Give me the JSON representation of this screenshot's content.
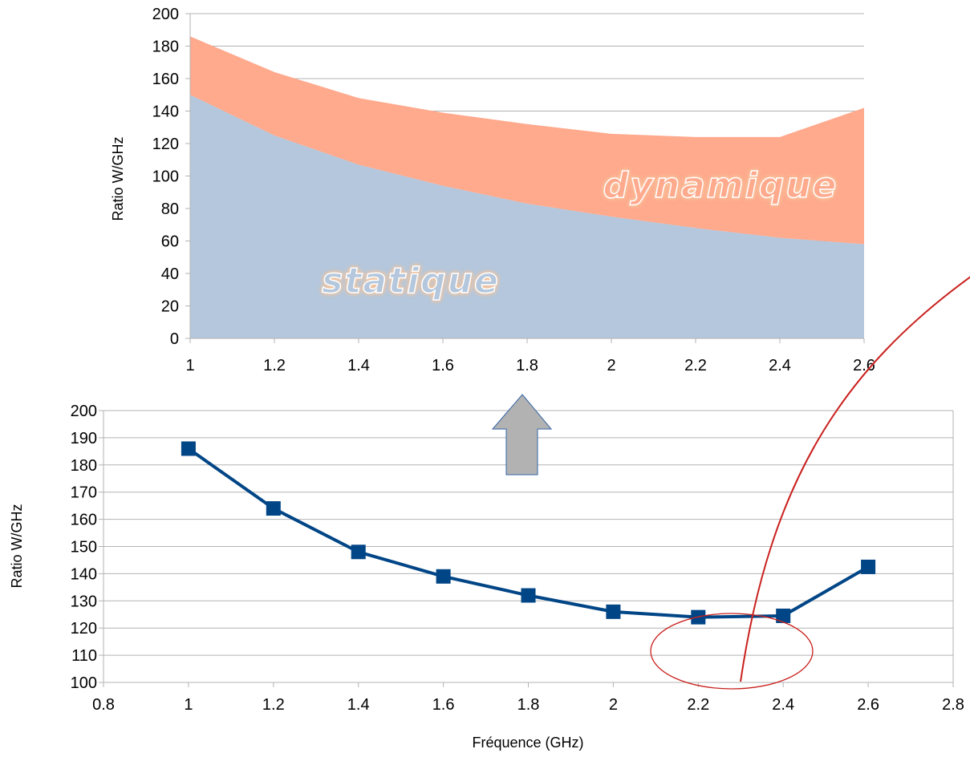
{
  "chart_data": [
    {
      "type": "area",
      "stacked": true,
      "x": [
        1,
        1.2,
        1.4,
        1.6,
        1.8,
        2,
        2.2,
        2.4,
        2.6
      ],
      "series": [
        {
          "name": "statique",
          "values": [
            150,
            125,
            107,
            94,
            83,
            75,
            68,
            62,
            58
          ],
          "color": "#b4c7dc"
        },
        {
          "name": "dynamique",
          "values": [
            36,
            39,
            41,
            45,
            49,
            51,
            56,
            62,
            84
          ],
          "color": "#ffa98d"
        }
      ],
      "ylabel": "Ratio W/GHz",
      "ylim": [
        0,
        200
      ],
      "yticks": [
        0,
        20,
        40,
        60,
        80,
        100,
        120,
        140,
        160,
        180,
        200
      ],
      "xtick_labels": [
        "1",
        "1.2",
        "1.4",
        "1.6",
        "1.8",
        "2",
        "2.2",
        "2.4",
        "2.6"
      ],
      "grid": true,
      "legend": "none"
    },
    {
      "type": "line",
      "x": [
        1,
        1.2,
        1.4,
        1.6,
        1.8,
        2,
        2.2,
        2.4,
        2.6
      ],
      "series": [
        {
          "values": [
            186,
            164,
            148,
            139,
            132,
            126,
            124,
            124.5,
            142.5
          ],
          "color": "#004586",
          "marker": "square"
        }
      ],
      "xlabel": "Fréquence (GHz)",
      "ylabel": "Ratio W/GHz",
      "xlim": [
        0.8,
        2.8
      ],
      "ylim": [
        100,
        200
      ],
      "yticks": [
        100,
        110,
        120,
        130,
        140,
        150,
        160,
        170,
        180,
        190,
        200
      ],
      "xtick_labels": [
        "0.8",
        "1",
        "1.2",
        "1.4",
        "1.6",
        "1.8",
        "2",
        "2.2",
        "2.4",
        "2.6",
        "2.8"
      ],
      "grid": true,
      "legend": "none"
    }
  ],
  "annotations": {
    "arrow_color": "#b2b2b2",
    "circle_color": "#c9211e",
    "circle_highlight_x": [
      2.2,
      2.4
    ]
  }
}
